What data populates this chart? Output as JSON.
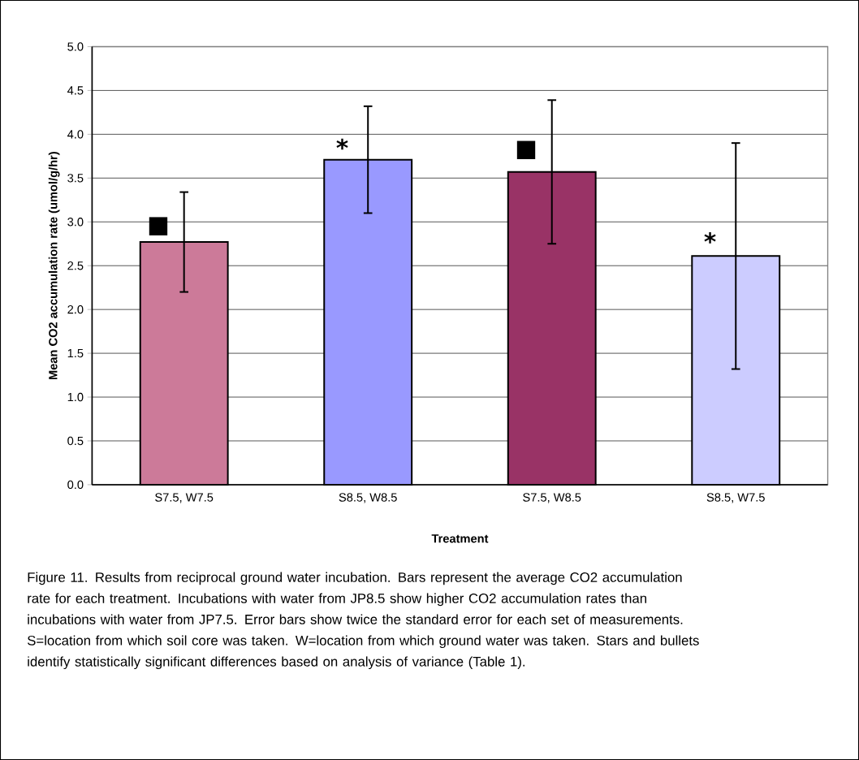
{
  "chart_data": {
    "type": "bar",
    "xlabel": "Treatment",
    "ylabel": "Mean CO2 accumulation rate (umol/g/hr)",
    "categories": [
      "S7.5, W7.5",
      "S8.5, W8.5",
      "S7.5, W8.5",
      "S8.5, W7.5"
    ],
    "values": [
      2.77,
      3.71,
      3.57,
      2.61
    ],
    "errors": [
      0.57,
      0.61,
      0.82,
      1.29
    ],
    "colors": [
      "#cc7a99",
      "#9999ff",
      "#993366",
      "#ccccff"
    ],
    "ylim": [
      0,
      5
    ],
    "yticks": [
      {
        "value": 0,
        "label": "0.0"
      },
      {
        "value": 0.5,
        "label": "0.5"
      },
      {
        "value": 1,
        "label": "1.0"
      },
      {
        "value": 1.5,
        "label": "1.5"
      },
      {
        "value": 2,
        "label": "2.0"
      },
      {
        "value": 2.5,
        "label": "2.5"
      },
      {
        "value": 3,
        "label": "3.0"
      },
      {
        "value": 3.5,
        "label": "3.5"
      },
      {
        "value": 4,
        "label": "4.0"
      },
      {
        "value": 4.5,
        "label": "4.5"
      },
      {
        "value": 5,
        "label": "5.0"
      }
    ],
    "grid": "y",
    "annotations": [
      {
        "text": "■",
        "x": "S7.5, W7.5",
        "y": 2.95
      },
      {
        "text": "*",
        "x": "S8.5, W8.5",
        "y": 3.85
      },
      {
        "text": "■",
        "x": "S7.5, W8.5",
        "y": 3.82
      },
      {
        "text": "*",
        "x": "S8.5, W7.5",
        "y": 2.78
      },
      "Figure 11.  Results from reciprocal ground water incubation.  Bars represent the average CO2 accumulation rate for each treatment.  Incubations with water from JP8.5 show higher CO2 accumulation rates than incubations with water from JP7.5.  Error bars show twice the standard error for each set of measurements.  S=location from which soil core was taken.  W=location from which ground water was taken.  Stars and bullets identify statistically significant differences based on analysis of variance (Table 1)."
    ]
  }
}
